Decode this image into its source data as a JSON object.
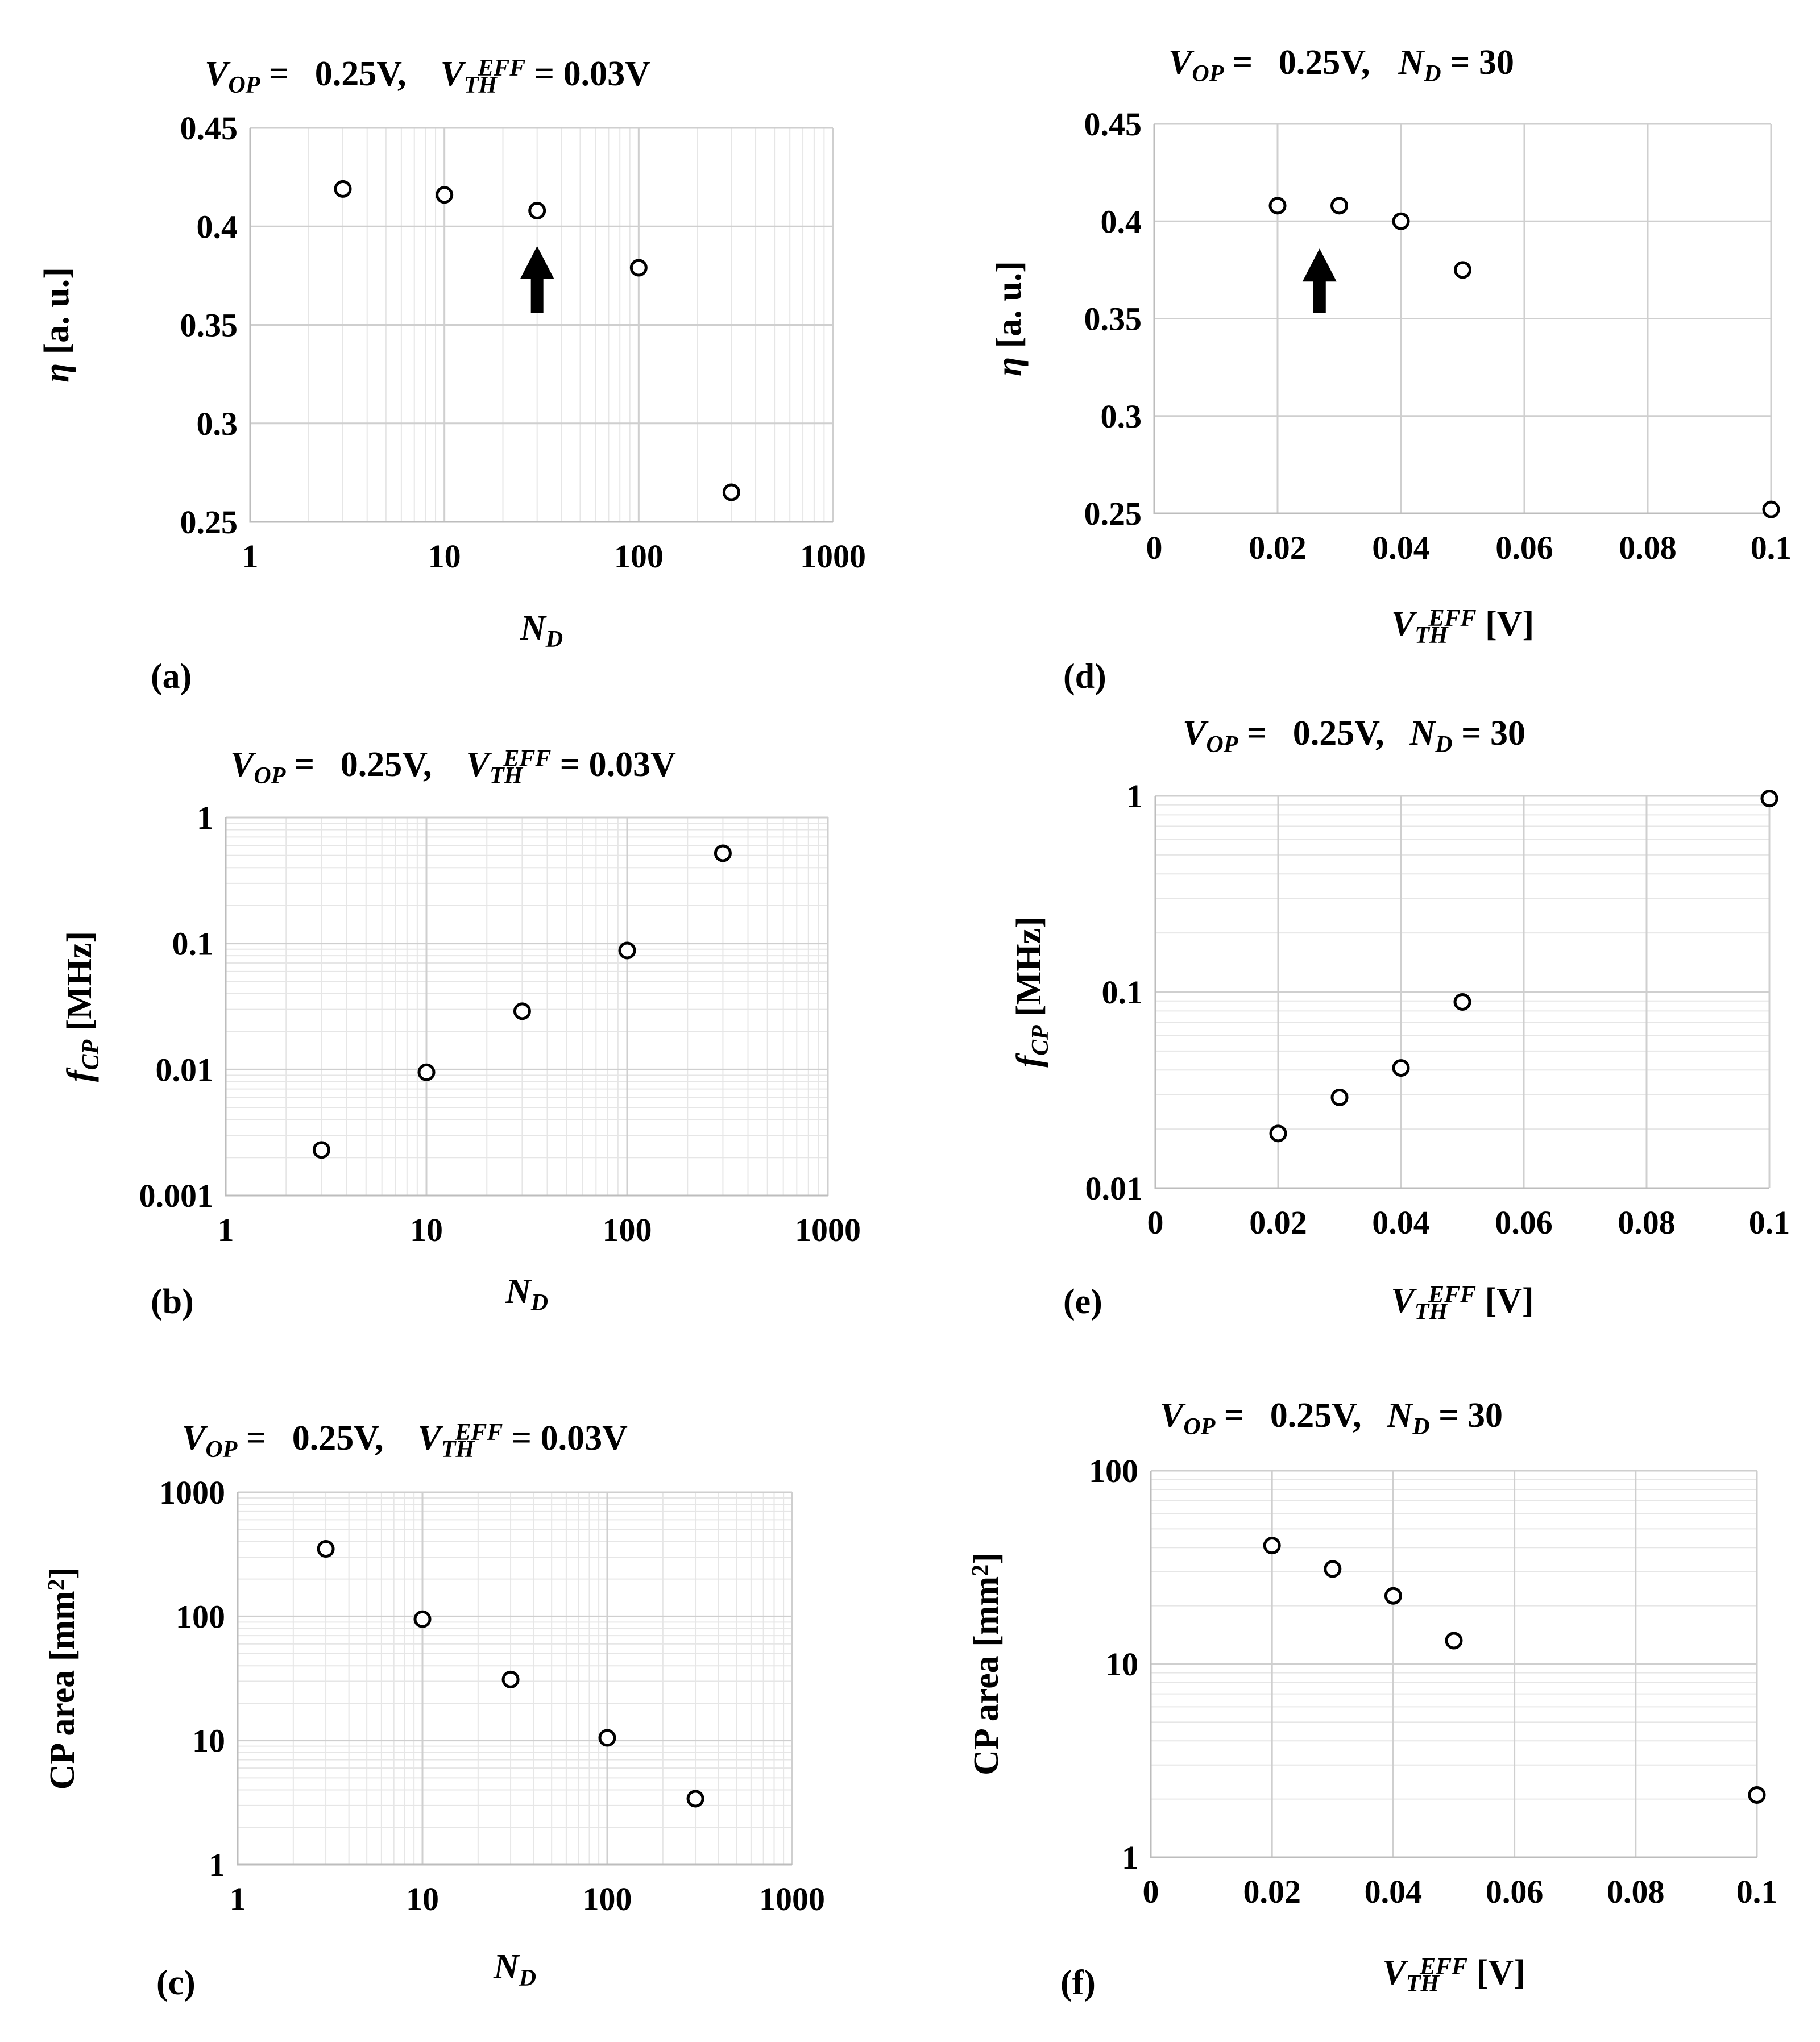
{
  "chart_data": [
    {
      "id": "a",
      "type": "scatter",
      "panel_label": "(a)",
      "title": [
        {
          "text": "V",
          "sub": "OP",
          "sup": ""
        },
        {
          "text": " = ",
          "sub": "",
          "sup": ""
        },
        {
          "text": "  0.25V,",
          "sub": "",
          "sup": ""
        },
        {
          "text": "V",
          "sub": "TH",
          "sup": "EFF"
        },
        {
          "text": " = 0.03V",
          "sub": "",
          "sup": ""
        }
      ],
      "xlabel": {
        "main": "N",
        "sub": "D",
        "sup": "",
        "rest": ""
      },
      "ylabel": {
        "main": "η",
        "sub": "",
        "sup": "",
        "rest": " [a. u.]"
      },
      "xscale": "log",
      "yscale": "linear",
      "xlim": [
        1,
        1000
      ],
      "ylim": [
        0.25,
        0.45
      ],
      "xticks": [
        1,
        10,
        100,
        1000
      ],
      "xtick_labels": [
        "1",
        "10",
        "100",
        "1000"
      ],
      "yticks": [
        0.25,
        0.3,
        0.35,
        0.4,
        0.45
      ],
      "ytick_labels": [
        "0.25",
        "0.3",
        "0.35",
        "0.4",
        "0.45"
      ],
      "grid": true,
      "x": [
        3,
        10,
        30,
        100,
        300
      ],
      "y": [
        0.419,
        0.416,
        0.408,
        0.379,
        0.265
      ],
      "arrow_x": 30,
      "arrow_y": [
        0.356,
        0.39
      ]
    },
    {
      "id": "d",
      "type": "scatter",
      "panel_label": "(d)",
      "title": [
        {
          "text": "V",
          "sub": "OP",
          "sup": ""
        },
        {
          "text": " = ",
          "sub": "",
          "sup": ""
        },
        {
          "text": "  0.25V,",
          "sub": "",
          "sup": ""
        },
        {
          "text": "N",
          "sub": "D",
          "sup": ""
        },
        {
          "text": " = 30",
          "sub": "",
          "sup": ""
        }
      ],
      "xlabel": {
        "main": "V",
        "sub": "TH",
        "sup": "EFF",
        "rest": " [V]"
      },
      "ylabel": {
        "main": "η",
        "sub": "",
        "sup": "",
        "rest": " [a. u.]"
      },
      "xscale": "linear",
      "yscale": "linear",
      "xlim": [
        0,
        0.1
      ],
      "ylim": [
        0.25,
        0.45
      ],
      "xticks": [
        0,
        0.02,
        0.04,
        0.06,
        0.08,
        0.1
      ],
      "xtick_labels": [
        "0",
        "0.02",
        "0.04",
        "0.06",
        "0.08",
        "0.1"
      ],
      "yticks": [
        0.25,
        0.3,
        0.35,
        0.4,
        0.45
      ],
      "ytick_labels": [
        "0.25",
        "0.3",
        "0.35",
        "0.4",
        "0.45"
      ],
      "grid": true,
      "x": [
        0.02,
        0.03,
        0.04,
        0.05,
        0.1
      ],
      "y": [
        0.408,
        0.408,
        0.4,
        0.375,
        0.252
      ],
      "arrow_x": 0.0268,
      "arrow_y": [
        0.353,
        0.386
      ]
    },
    {
      "id": "b",
      "type": "scatter",
      "panel_label": "(b)",
      "title": [
        {
          "text": "V",
          "sub": "OP",
          "sup": ""
        },
        {
          "text": " = ",
          "sub": "",
          "sup": ""
        },
        {
          "text": "  0.25V,",
          "sub": "",
          "sup": ""
        },
        {
          "text": "V",
          "sub": "TH",
          "sup": "EFF"
        },
        {
          "text": " = 0.03V",
          "sub": "",
          "sup": ""
        }
      ],
      "xlabel": {
        "main": "N",
        "sub": "D",
        "sup": "",
        "rest": ""
      },
      "ylabel": {
        "main": "f",
        "sub": "CP",
        "sup": "",
        "rest": " [MHz]"
      },
      "xscale": "log",
      "yscale": "log",
      "xlim": [
        1,
        1000
      ],
      "ylim": [
        0.001,
        1
      ],
      "xticks": [
        1,
        10,
        100,
        1000
      ],
      "xtick_labels": [
        "1",
        "10",
        "100",
        "1000"
      ],
      "yticks": [
        0.001,
        0.01,
        0.1,
        1
      ],
      "ytick_labels": [
        "0.001",
        "0.01",
        "0.1",
        "1"
      ],
      "grid": true,
      "x": [
        3,
        10,
        30,
        100,
        300
      ],
      "y": [
        0.0023,
        0.0095,
        0.029,
        0.088,
        0.52
      ]
    },
    {
      "id": "e",
      "type": "scatter",
      "panel_label": "(e)",
      "title": [
        {
          "text": "V",
          "sub": "OP",
          "sup": ""
        },
        {
          "text": " = ",
          "sub": "",
          "sup": ""
        },
        {
          "text": "  0.25V,",
          "sub": "",
          "sup": ""
        },
        {
          "text": "N",
          "sub": "D",
          "sup": ""
        },
        {
          "text": " = 30",
          "sub": "",
          "sup": ""
        }
      ],
      "xlabel": {
        "main": "V",
        "sub": "TH",
        "sup": "EFF",
        "rest": " [V]"
      },
      "ylabel": {
        "main": "f",
        "sub": "CP",
        "sup": "",
        "rest": " [MHz]"
      },
      "xscale": "linear",
      "yscale": "log",
      "xlim": [
        0,
        0.1
      ],
      "ylim": [
        0.01,
        1
      ],
      "xticks": [
        0,
        0.02,
        0.04,
        0.06,
        0.08,
        0.1
      ],
      "xtick_labels": [
        "0",
        "0.02",
        "0.04",
        "0.06",
        "0.08",
        "0.1"
      ],
      "yticks": [
        0.01,
        0.1,
        1
      ],
      "ytick_labels": [
        "0.01",
        "0.1",
        "1"
      ],
      "grid": true,
      "x": [
        0.02,
        0.03,
        0.04,
        0.05,
        0.1
      ],
      "y": [
        0.019,
        0.029,
        0.041,
        0.089,
        0.97
      ]
    },
    {
      "id": "c",
      "type": "scatter",
      "panel_label": "(c)",
      "title": [
        {
          "text": "V",
          "sub": "OP",
          "sup": ""
        },
        {
          "text": " = ",
          "sub": "",
          "sup": ""
        },
        {
          "text": "  0.25V,",
          "sub": "",
          "sup": ""
        },
        {
          "text": "V",
          "sub": "TH",
          "sup": "EFF"
        },
        {
          "text": " = 0.03V",
          "sub": "",
          "sup": ""
        }
      ],
      "xlabel": {
        "main": "N",
        "sub": "D",
        "sup": "",
        "rest": ""
      },
      "ylabel": {
        "main": "CP area [mm",
        "sub": "",
        "sup": "2",
        "rest": "]"
      },
      "xscale": "log",
      "yscale": "log",
      "xlim": [
        1,
        1000
      ],
      "ylim": [
        1,
        1000
      ],
      "xticks": [
        1,
        10,
        100,
        1000
      ],
      "xtick_labels": [
        "1",
        "10",
        "100",
        "1000"
      ],
      "yticks": [
        1,
        10,
        100,
        1000
      ],
      "ytick_labels": [
        "1",
        "10",
        "100",
        "1000"
      ],
      "grid": true,
      "x": [
        3,
        10,
        30,
        100,
        300
      ],
      "y": [
        350,
        95,
        31,
        10.5,
        3.4
      ]
    },
    {
      "id": "f",
      "type": "scatter",
      "panel_label": "(f)",
      "title": [
        {
          "text": "V",
          "sub": "OP",
          "sup": ""
        },
        {
          "text": " = ",
          "sub": "",
          "sup": ""
        },
        {
          "text": "  0.25V,",
          "sub": "",
          "sup": ""
        },
        {
          "text": "N",
          "sub": "D",
          "sup": ""
        },
        {
          "text": " = 30",
          "sub": "",
          "sup": ""
        }
      ],
      "xlabel": {
        "main": "V",
        "sub": "TH",
        "sup": "EFF",
        "rest": " [V]"
      },
      "ylabel": {
        "main": "CP area [mm",
        "sub": "",
        "sup": "2",
        "rest": "]"
      },
      "xscale": "linear",
      "yscale": "log",
      "xlim": [
        0,
        0.1
      ],
      "ylim": [
        1,
        100
      ],
      "xticks": [
        0,
        0.02,
        0.04,
        0.06,
        0.08,
        0.1
      ],
      "xtick_labels": [
        "0",
        "0.02",
        "0.04",
        "0.06",
        "0.08",
        "0.1"
      ],
      "yticks": [
        1,
        10,
        100
      ],
      "ytick_labels": [
        "1",
        "10",
        "100"
      ],
      "grid": true,
      "x": [
        0.02,
        0.03,
        0.04,
        0.05,
        0.1
      ],
      "y": [
        41,
        31,
        22.5,
        13.2,
        2.1
      ]
    }
  ]
}
